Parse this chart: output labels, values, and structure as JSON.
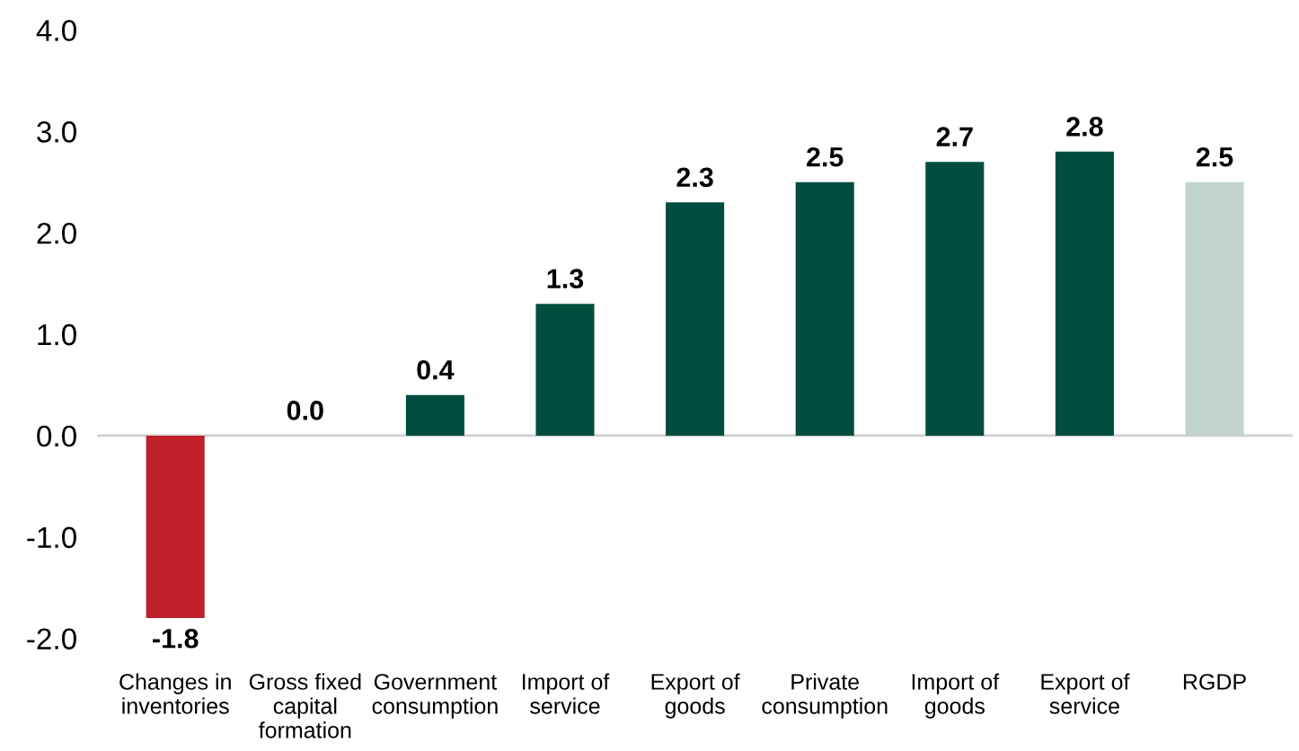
{
  "chart_data": {
    "type": "bar",
    "categories": [
      "Changes in inventories",
      "Gross fixed capital formation",
      "Government consumption",
      "Import of service",
      "Export of goods",
      "Private consumption",
      "Import of goods",
      "Export of service",
      "RGDP"
    ],
    "values": [
      -1.8,
      0.0,
      0.4,
      1.3,
      2.3,
      2.5,
      2.7,
      2.8,
      2.5
    ],
    "colors": [
      "#c0202a",
      "#004d40",
      "#004d40",
      "#004d40",
      "#004d40",
      "#004d40",
      "#004d40",
      "#004d40",
      "#c2d4cc"
    ],
    "ylim": [
      -2.0,
      4.0
    ],
    "yticks": [
      {
        "value": -2.0,
        "label": "-2.0"
      },
      {
        "value": -1.0,
        "label": "-1.0"
      },
      {
        "value": 0.0,
        "label": "0.0"
      },
      {
        "value": 1.0,
        "label": "1.0"
      },
      {
        "value": 2.0,
        "label": "2.0"
      },
      {
        "value": 3.0,
        "label": "3.0"
      },
      {
        "value": 4.0,
        "label": "4.0"
      }
    ],
    "value_labels": [
      "-1.8",
      "0.0",
      "0.4",
      "1.3",
      "2.3",
      "2.5",
      "2.7",
      "2.8",
      "2.5"
    ],
    "ref_lines": [
      {
        "axis": "y",
        "value": 0.0,
        "color": "#d0d0d0"
      }
    ],
    "legend": false
  }
}
